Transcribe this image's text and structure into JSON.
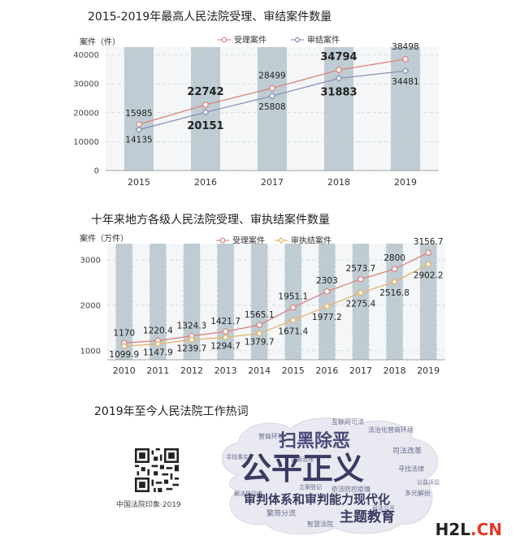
{
  "chart_data": [
    {
      "type": "line",
      "title": "2015-2019年最高人民法院受理、审结案件数量",
      "ylabel": "案件（件）",
      "categories": [
        "2015",
        "2016",
        "2017",
        "2018",
        "2019"
      ],
      "yticks": [
        "0",
        "10000",
        "20000",
        "30000",
        "40000"
      ],
      "ylim": [
        0,
        41000
      ],
      "legend_position": "top-right",
      "series": [
        {
          "name": "受理案件",
          "values": [
            15985,
            22742,
            28499,
            34794,
            38498
          ],
          "labels": [
            "15985",
            "22742",
            "28499",
            "34794",
            "38498"
          ],
          "color": "#d9837c"
        },
        {
          "name": "审结案件",
          "values": [
            14135,
            20151,
            25808,
            31883,
            34481
          ],
          "labels": [
            "14135",
            "20151",
            "25808",
            "31883",
            "34481"
          ],
          "color": "#8a92b8"
        }
      ],
      "bold_labels": [
        "22742",
        "20151",
        "34794",
        "31883"
      ],
      "grid": true
    },
    {
      "type": "line",
      "title": "十年来地方各级人民法院受理、审执结案件数量",
      "ylabel": "案件（万件）",
      "categories": [
        "2010",
        "2011",
        "2012",
        "2013",
        "2014",
        "2015",
        "2016",
        "2017",
        "2018",
        "2019"
      ],
      "yticks": [
        "1000",
        "2000",
        "3000"
      ],
      "ylim": [
        800,
        3250
      ],
      "legend_position": "top-right",
      "series": [
        {
          "name": "受理案件",
          "values": [
            1170,
            1220.4,
            1324.3,
            1421.7,
            1565.1,
            1951.1,
            2303,
            2573.7,
            2800,
            3156.7
          ],
          "labels": [
            "1170",
            "1220.4",
            "1324.3",
            "1421.7",
            "1565.1",
            "1951.1",
            "2303",
            "2573.7",
            "2800",
            "3156.7"
          ],
          "color": "#d9837c"
        },
        {
          "name": "审执结案件",
          "values": [
            1099.9,
            1147.9,
            1239.7,
            1294.7,
            1379.7,
            1671.4,
            1977.2,
            2275.4,
            2516.8,
            2902.2
          ],
          "labels": [
            "1099.9",
            "1147.9",
            "1239.7",
            "1294.7",
            "1379.7",
            "1671.4",
            "1977.2",
            "2275.4",
            "2516.8",
            "2902.2"
          ],
          "color": "#e4b46a"
        }
      ],
      "grid": true
    }
  ],
  "section3": {
    "title": "2019年至今人民法院工作热词",
    "qr_caption": "中国法院印象·2019",
    "big_words": [
      "公平正义",
      "扫黑除恶",
      "审判体系和审判能力现代化",
      "主题教育"
    ],
    "small_words": [
      "互联网司法",
      "营商环境",
      "法治化营商环境",
      "司法改革",
      "寻找事实",
      "寻找法律",
      "依法防控疫情",
      "繁简分流",
      "智慧法院",
      "解决执行难",
      "多元解纷",
      "司法公开",
      "诉源治理",
      "立案登记",
      "公益诉讼"
    ]
  },
  "watermark": {
    "prefix": "H2L",
    "suffix": ".CN"
  }
}
